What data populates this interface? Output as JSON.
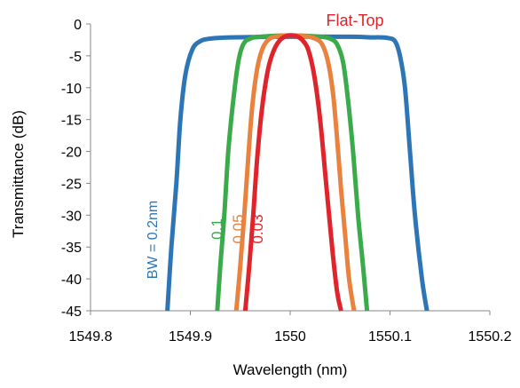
{
  "chart_data": {
    "type": "line",
    "title": "",
    "xlabel": "Wavelength (nm)",
    "ylabel": "Transmittance (dB)",
    "xlim": [
      1549.8,
      1550.2
    ],
    "ylim": [
      -45,
      0
    ],
    "xticks": [
      1549.8,
      1549.9,
      1550,
      1550.1,
      1550.2
    ],
    "xtick_labels": [
      "1549.8",
      "1549.9",
      "1550",
      "1550.1",
      "1550.2"
    ],
    "yticks": [
      0,
      -5,
      -10,
      -15,
      -20,
      -25,
      -30,
      -35,
      -40,
      -45
    ],
    "ytick_labels": [
      "0",
      "-5",
      "-10",
      "-15",
      "-20",
      "-25",
      "-30",
      "-35",
      "-40",
      "-45"
    ],
    "grid": false,
    "annotation": "Flat-Top",
    "annotation_color": "#e0242b",
    "series": [
      {
        "label": "BW = 0.2nm",
        "color": "#2e75b6",
        "x": [
          1549.877,
          1549.881,
          1549.886,
          1549.89,
          1549.895,
          1549.902,
          1549.91,
          1549.92,
          1549.94,
          1550.0,
          1550.06,
          1550.08,
          1550.09,
          1550.098,
          1550.105,
          1550.11,
          1550.115,
          1550.12,
          1550.125,
          1550.132,
          1550.137
        ],
        "y": [
          -45,
          -35,
          -25,
          -15,
          -8,
          -4,
          -2.7,
          -2.3,
          -2.1,
          -2.0,
          -2.0,
          -2.1,
          -2.1,
          -2.2,
          -2.7,
          -5,
          -10,
          -20,
          -30,
          -40,
          -45
        ]
      },
      {
        "label": "0.1",
        "color": "#3aaa4b",
        "x": [
          1549.927,
          1549.93,
          1549.934,
          1549.938,
          1549.943,
          1549.948,
          1549.953,
          1549.96,
          1549.97,
          1550.0,
          1550.03,
          1550.04,
          1550.047,
          1550.053,
          1550.058,
          1550.063,
          1550.068,
          1550.073,
          1550.077
        ],
        "y": [
          -45,
          -38,
          -30,
          -20,
          -12,
          -6,
          -3.2,
          -2.3,
          -2.0,
          -1.8,
          -2.0,
          -2.3,
          -3.2,
          -6,
          -12,
          -20,
          -30,
          -38,
          -45
        ]
      },
      {
        "label": "0.05",
        "color": "#e8823e",
        "x": [
          1549.946,
          1549.95,
          1549.954,
          1549.958,
          1549.962,
          1549.967,
          1549.972,
          1549.978,
          1549.985,
          1550.0,
          1550.015,
          1550.025,
          1550.032,
          1550.038,
          1550.043,
          1550.047,
          1550.051,
          1550.055,
          1550.059,
          1550.064
        ],
        "y": [
          -45,
          -38,
          -30,
          -21,
          -13,
          -7,
          -4,
          -2.5,
          -2.0,
          -1.8,
          -1.9,
          -2.3,
          -3.2,
          -6,
          -11,
          -18,
          -26,
          -33,
          -40,
          -45
        ]
      },
      {
        "label": "0.03",
        "color": "#e0242b",
        "x": [
          1549.955,
          1549.959,
          1549.963,
          1549.967,
          1549.972,
          1549.978,
          1549.984,
          1549.99,
          1549.996,
          1550.0,
          1550.006,
          1550.012,
          1550.018,
          1550.024,
          1550.03,
          1550.036,
          1550.042,
          1550.047,
          1550.051
        ],
        "y": [
          -45,
          -38,
          -30,
          -21,
          -13,
          -7,
          -4,
          -2.5,
          -1.9,
          -1.8,
          -1.9,
          -2.5,
          -4,
          -8,
          -15,
          -25,
          -35,
          -42,
          -45
        ]
      }
    ]
  }
}
